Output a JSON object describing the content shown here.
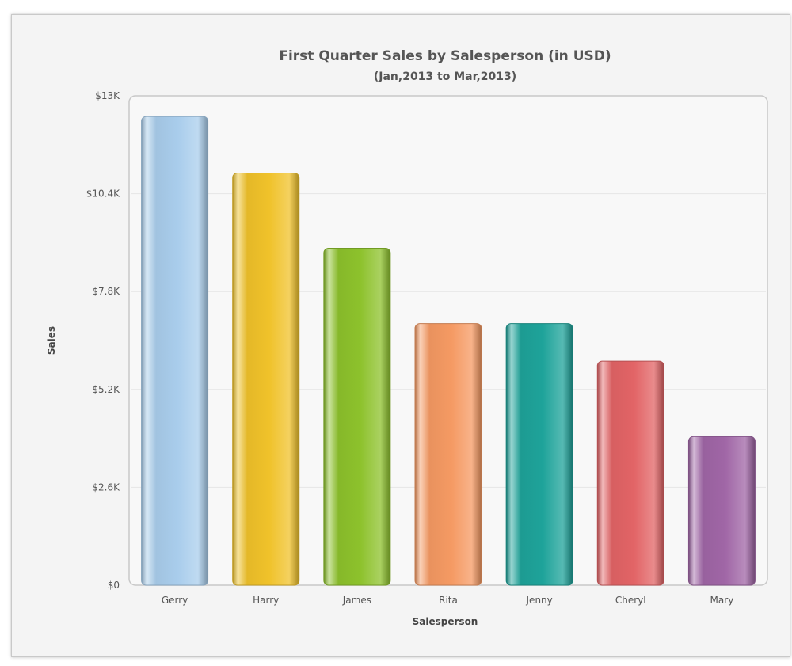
{
  "chart_data": {
    "type": "bar",
    "title": "First Quarter Sales by Salesperson (in USD)",
    "subtitle": "(Jan,2013 to Mar,2013)",
    "xlabel": "Salesperson",
    "ylabel": "Sales",
    "categories": [
      "Gerry",
      "Harry",
      "James",
      "Rita",
      "Jenny",
      "Cheryl",
      "Mary"
    ],
    "values": [
      12450,
      10950,
      8950,
      6950,
      6950,
      5950,
      3950
    ],
    "ylim": [
      0,
      13000
    ],
    "yticks": [
      0,
      2600,
      5200,
      7800,
      10400,
      13000
    ],
    "ytick_labels": [
      "$0",
      "$2.6K",
      "$5.2K",
      "$7.8K",
      "$10.4K",
      "$13K"
    ],
    "grid": true,
    "legend": "none",
    "colors": [
      "#a9cdec",
      "#f0c22a",
      "#8dc22c",
      "#f59a63",
      "#1ea39a",
      "#e26466",
      "#a066a6"
    ]
  }
}
